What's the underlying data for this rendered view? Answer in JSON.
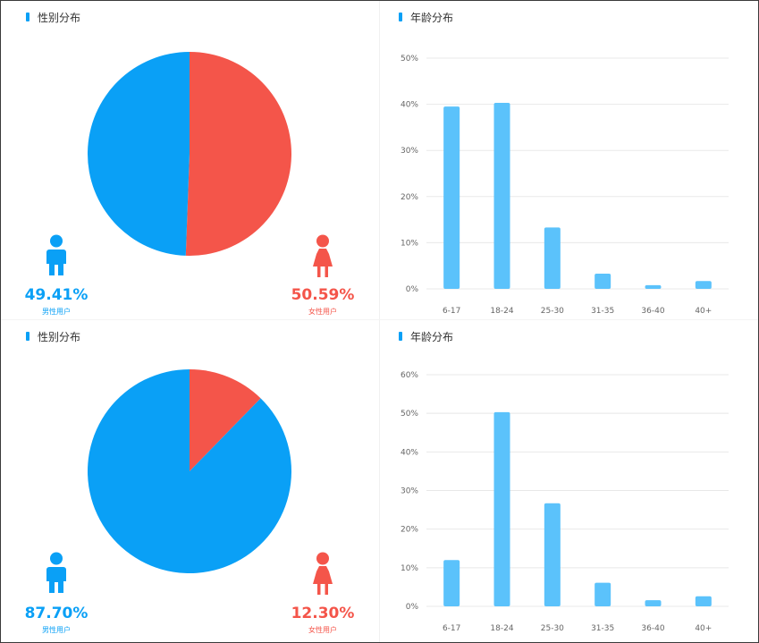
{
  "colors": {
    "male": "#0aa0f6",
    "female": "#f4554a",
    "bar": "#5bc2fb",
    "grid": "#e8e8e8",
    "axis_text": "#666666"
  },
  "icons": {
    "male": "male-user-icon",
    "female": "female-user-icon"
  },
  "panels": [
    {
      "gender_title": "性别分布",
      "age_title": "年龄分布",
      "male_pct": "49.41%",
      "male_caption": "男性用户",
      "female_pct": "50.59%",
      "female_caption": "女性用户"
    },
    {
      "gender_title": "性别分布",
      "age_title": "年龄分布",
      "male_pct": "87.70%",
      "male_caption": "男性用户",
      "female_pct": "12.30%",
      "female_caption": "女性用户"
    }
  ],
  "chart_data": [
    {
      "type": "pie",
      "title": "性别分布",
      "labels": [
        "男性用户",
        "女性用户"
      ],
      "values": [
        49.41,
        50.59
      ],
      "colors": [
        "#0aa0f6",
        "#f4554a"
      ]
    },
    {
      "type": "bar",
      "title": "年龄分布",
      "categories": [
        "6-17",
        "18-24",
        "25-30",
        "31-35",
        "36-40",
        "40+"
      ],
      "values": [
        39.5,
        40.3,
        13.3,
        3.3,
        0.8,
        1.7
      ],
      "ylim": [
        0,
        50
      ],
      "yticks": [
        "0%",
        "10%",
        "20%",
        "30%",
        "40%",
        "50%"
      ],
      "grid": true
    },
    {
      "type": "pie",
      "title": "性别分布",
      "labels": [
        "男性用户",
        "女性用户"
      ],
      "values": [
        87.7,
        12.3
      ],
      "colors": [
        "#0aa0f6",
        "#f4554a"
      ]
    },
    {
      "type": "bar",
      "title": "年龄分布",
      "categories": [
        "6-17",
        "18-24",
        "25-30",
        "31-35",
        "36-40",
        "40+"
      ],
      "values": [
        12,
        50.3,
        26.7,
        6.1,
        1.6,
        2.6
      ],
      "ylim": [
        0,
        60
      ],
      "yticks": [
        "0%",
        "10%",
        "20%",
        "30%",
        "40%",
        "50%",
        "60%"
      ],
      "grid": true
    }
  ]
}
